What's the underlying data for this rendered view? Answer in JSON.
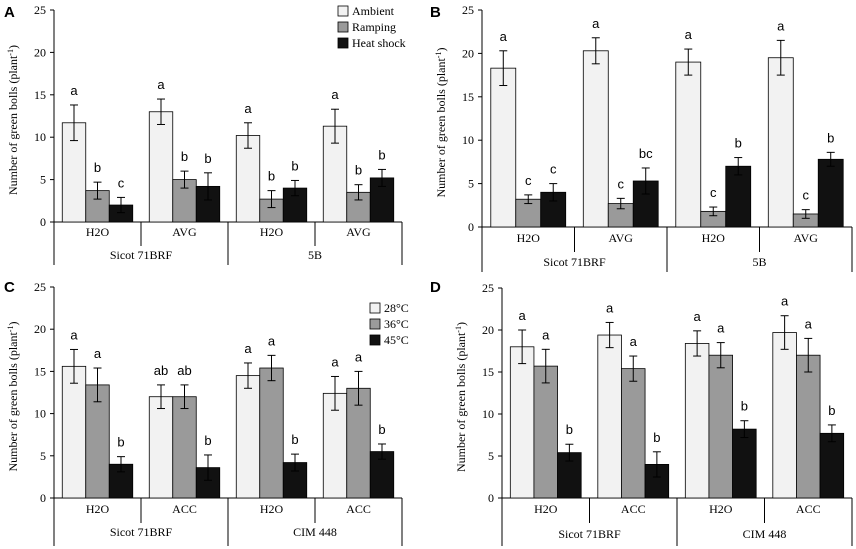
{
  "colors": {
    "s0": "#f2f2f2",
    "s1": "#9a9a9a",
    "s2": "#111111",
    "axis": "#000000"
  },
  "chart_data": [
    {
      "panel": "A",
      "type": "bar",
      "ylabel": "Number of green bolls (plant-1)",
      "ylabel_main": "Number of green bolls (plant",
      "ylabel_sup": "-1",
      "ylabel_end": ")",
      "ylim": [
        0,
        25
      ],
      "yticks": [
        0,
        5,
        10,
        15,
        20,
        25
      ],
      "categories": [
        "H2O",
        "AVG",
        "H2O",
        "AVG"
      ],
      "groups": [
        "Sicot 71BRF",
        "5B"
      ],
      "legend": [
        "Ambient",
        "Ramping",
        "Heat shock"
      ],
      "series": [
        {
          "name": "Ambient",
          "values": [
            11.7,
            13.0,
            10.2,
            11.3
          ],
          "errors": [
            2.1,
            1.5,
            1.5,
            2.0
          ],
          "letters": [
            "a",
            "a",
            "a",
            "a"
          ]
        },
        {
          "name": "Ramping",
          "values": [
            3.7,
            5.0,
            2.7,
            3.5
          ],
          "errors": [
            1.0,
            1.0,
            1.0,
            0.9
          ],
          "letters": [
            "b",
            "b",
            "b",
            "b"
          ]
        },
        {
          "name": "Heat shock",
          "values": [
            2.0,
            4.2,
            4.0,
            5.2
          ],
          "errors": [
            0.9,
            1.6,
            0.9,
            1.0
          ],
          "letters": [
            "c",
            "b",
            "b",
            "b"
          ]
        }
      ]
    },
    {
      "panel": "B",
      "type": "bar",
      "ylabel": "Number of green bolls (plant-1)",
      "ylabel_main": "Number of green bolls (plant",
      "ylabel_sup": "-1",
      "ylabel_end": ")",
      "ylim": [
        0,
        25
      ],
      "yticks": [
        0,
        5,
        10,
        15,
        20,
        25
      ],
      "categories": [
        "H2O",
        "AVG",
        "H2O",
        "AVG"
      ],
      "groups": [
        "Sicot 71BRF",
        "5B"
      ],
      "legend": [],
      "series": [
        {
          "name": "Ambient",
          "values": [
            18.3,
            20.3,
            19.0,
            19.5
          ],
          "errors": [
            2.0,
            1.5,
            1.5,
            2.0
          ],
          "letters": [
            "a",
            "a",
            "a",
            "a"
          ]
        },
        {
          "name": "Ramping",
          "values": [
            3.2,
            2.7,
            1.8,
            1.5
          ],
          "errors": [
            0.5,
            0.6,
            0.5,
            0.5
          ],
          "letters": [
            "c",
            "c",
            "c",
            "c"
          ]
        },
        {
          "name": "Heat shock",
          "values": [
            4.0,
            5.3,
            7.0,
            7.8
          ],
          "errors": [
            1.0,
            1.5,
            1.0,
            0.8
          ],
          "letters": [
            "c",
            "bc",
            "b",
            "b"
          ]
        }
      ]
    },
    {
      "panel": "C",
      "type": "bar",
      "ylabel": "Number of green bolls (plant-1)",
      "ylabel_main": "Number of green bolls (plant",
      "ylabel_sup": "-1",
      "ylabel_end": ")",
      "ylim": [
        0,
        25
      ],
      "yticks": [
        0,
        5,
        10,
        15,
        20,
        25
      ],
      "categories": [
        "H2O",
        "ACC",
        "H2O",
        "ACC"
      ],
      "groups": [
        "Sicot 71BRF",
        "CIM 448"
      ],
      "legend": [
        "28°C",
        "36°C",
        "45°C"
      ],
      "series": [
        {
          "name": "28°C",
          "values": [
            15.6,
            12.0,
            14.5,
            12.4
          ],
          "errors": [
            2.0,
            1.4,
            1.5,
            2.0
          ],
          "letters": [
            "a",
            "ab",
            "a",
            "a"
          ]
        },
        {
          "name": "36°C",
          "values": [
            13.4,
            12.0,
            15.4,
            13.0
          ],
          "errors": [
            2.0,
            1.4,
            1.5,
            2.0
          ],
          "letters": [
            "a",
            "ab",
            "a",
            "a"
          ]
        },
        {
          "name": "45°C",
          "values": [
            4.0,
            3.6,
            4.2,
            5.5
          ],
          "errors": [
            0.9,
            1.5,
            1.0,
            0.9
          ],
          "letters": [
            "b",
            "b",
            "b",
            "b"
          ]
        }
      ]
    },
    {
      "panel": "D",
      "type": "bar",
      "ylabel": "Number of green bolls (plant-1)",
      "ylabel_main": "Number of green bolls (plant",
      "ylabel_sup": "-1",
      "ylabel_end": ")",
      "ylim": [
        0,
        25
      ],
      "yticks": [
        0,
        5,
        10,
        15,
        20,
        25
      ],
      "categories": [
        "H2O",
        "ACC",
        "H2O",
        "ACC"
      ],
      "groups": [
        "Sicot 71BRF",
        "CIM 448"
      ],
      "legend": [],
      "series": [
        {
          "name": "28°C",
          "values": [
            18.0,
            19.4,
            18.4,
            19.7
          ],
          "errors": [
            2.0,
            1.5,
            1.5,
            2.0
          ],
          "letters": [
            "a",
            "a",
            "a",
            "a"
          ]
        },
        {
          "name": "36°C",
          "values": [
            15.7,
            15.4,
            17.0,
            17.0
          ],
          "errors": [
            2.0,
            1.5,
            1.5,
            2.0
          ],
          "letters": [
            "a",
            "a",
            "a",
            "a"
          ]
        },
        {
          "name": "45°C",
          "values": [
            5.4,
            4.0,
            8.2,
            7.7
          ],
          "errors": [
            1.0,
            1.5,
            1.0,
            1.0
          ],
          "letters": [
            "b",
            "b",
            "b",
            "b"
          ]
        }
      ]
    }
  ]
}
